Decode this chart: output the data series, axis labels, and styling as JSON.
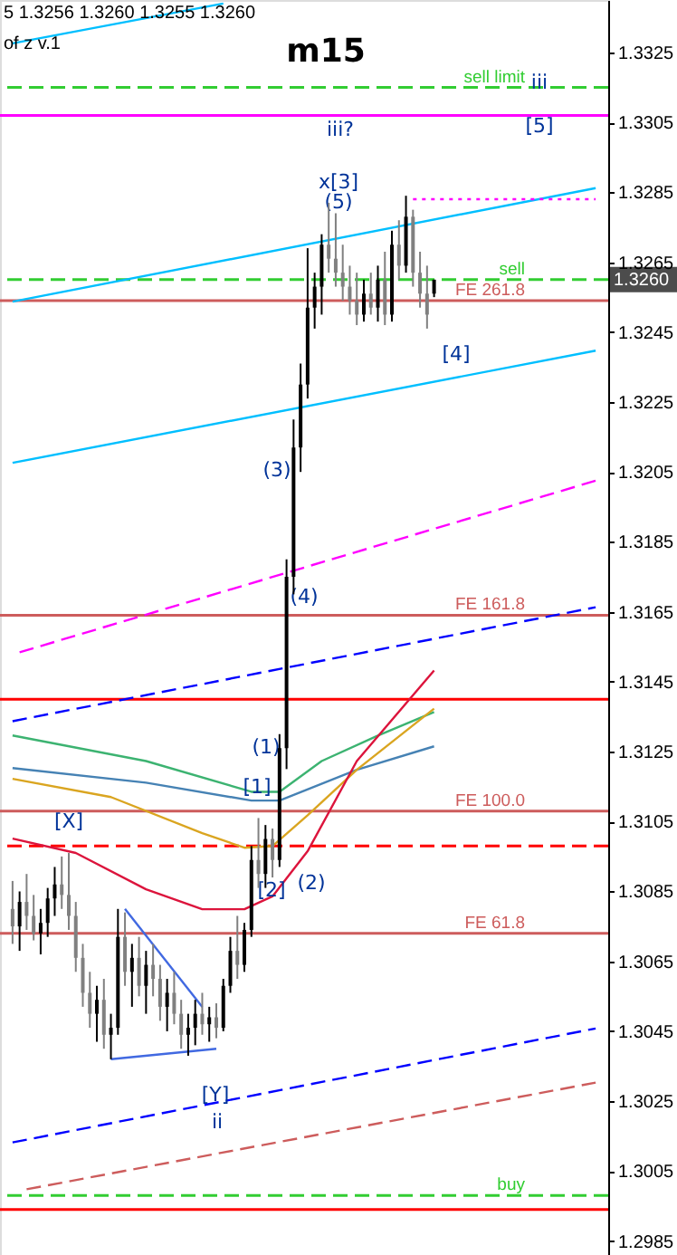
{
  "chart_data": {
    "type": "candlestick",
    "title": "m15",
    "colors": [
      "#808080",
      "#000000",
      "#808080",
      "#808080",
      "#000000",
      "#000000",
      "#000000",
      "#808080",
      "#808080",
      "#808080",
      "#808080",
      "#808080",
      "#000000",
      "#808080",
      "#000000",
      "#000000",
      "#808080",
      "#000000",
      "#808080",
      "#000000",
      "#808080",
      "#808080",
      "#000000",
      "#808080",
      "#808080",
      "#000000",
      "#000000",
      "#808080",
      "#000000",
      "#808080",
      "#000000",
      "#000000",
      "#808080",
      "#000000",
      "#000000",
      "#808080",
      "#000000",
      "#808080",
      "#000000",
      "#000000",
      "#000000",
      "#000000",
      "#000000",
      "#000000",
      "#000000",
      "#808080",
      "#808080",
      "#808080",
      "#808080",
      "#808080",
      "#000000",
      "#808080",
      "#000000",
      "#808080",
      "#000000",
      "#808080",
      "#000000",
      "#808080",
      "#808080",
      "#808080",
      "#000000",
      null,
      null,
      null,
      null,
      null,
      null,
      null,
      null,
      null,
      null,
      null,
      null,
      null,
      null,
      null,
      null,
      null,
      null,
      null,
      null,
      null,
      null,
      null
    ],
    "categories": [
      null,
      null,
      null,
      null,
      null,
      null,
      null,
      null,
      null,
      null,
      null,
      null,
      null,
      null,
      null,
      null,
      null,
      null,
      null,
      null,
      null,
      null,
      null,
      null,
      null,
      null,
      null,
      null,
      null,
      null,
      null,
      null,
      null,
      null,
      null,
      null,
      null,
      null,
      null,
      null,
      null,
      null,
      null,
      null,
      null,
      null,
      null,
      null,
      null,
      null,
      null,
      null,
      null,
      null,
      null,
      null,
      null,
      null,
      null,
      null,
      null,
      null,
      null,
      null,
      null,
      null,
      null,
      null,
      null,
      null,
      null,
      null,
      null,
      null,
      null,
      null,
      null,
      null,
      null,
      null,
      null,
      null,
      null,
      null
    ],
    "ohlc": [
      [
        1.308,
        1.3088,
        1.307,
        1.3075
      ],
      [
        1.3075,
        1.3085,
        1.3068,
        1.3082
      ],
      [
        1.3082,
        1.309,
        1.3074,
        1.3078
      ],
      [
        1.3078,
        1.3084,
        1.3071,
        1.3073
      ],
      [
        1.3073,
        1.308,
        1.3067,
        1.3076
      ],
      [
        1.3076,
        1.3086,
        1.3072,
        1.3083
      ],
      [
        1.3083,
        1.3092,
        1.3078,
        1.3087
      ],
      [
        1.3087,
        1.3095,
        1.308,
        1.3084
      ],
      [
        1.3084,
        1.3096,
        1.3074,
        1.3078
      ],
      [
        1.3078,
        1.3082,
        1.3062,
        1.3066
      ],
      [
        1.3066,
        1.307,
        1.3052,
        1.3056
      ],
      [
        1.3056,
        1.3062,
        1.3046,
        1.305
      ],
      [
        1.305,
        1.3058,
        1.3042,
        1.3054
      ],
      [
        1.3054,
        1.306,
        1.304,
        1.3044
      ],
      [
        1.3044,
        1.305,
        1.3037,
        1.3046
      ],
      [
        1.3046,
        1.308,
        1.3044,
        1.3072
      ],
      [
        1.3072,
        1.3079,
        1.3058,
        1.3062
      ],
      [
        1.3062,
        1.307,
        1.3052,
        1.3066
      ],
      [
        1.3066,
        1.3072,
        1.3055,
        1.3058
      ],
      [
        1.3058,
        1.3068,
        1.305,
        1.3064
      ],
      [
        1.3064,
        1.307,
        1.3055,
        1.306
      ],
      [
        1.306,
        1.3064,
        1.3048,
        1.3052
      ],
      [
        1.3052,
        1.306,
        1.3045,
        1.3056
      ],
      [
        1.3056,
        1.3062,
        1.3047,
        1.305
      ],
      [
        1.305,
        1.3054,
        1.304,
        1.3044
      ],
      [
        1.3044,
        1.305,
        1.3038,
        1.3046
      ],
      [
        1.3046,
        1.3054,
        1.3041,
        1.305
      ],
      [
        1.305,
        1.3056,
        1.3044,
        1.3047
      ],
      [
        1.3047,
        1.3052,
        1.3042,
        1.3049
      ],
      [
        1.3049,
        1.3053,
        1.3043,
        1.3046
      ],
      [
        1.3046,
        1.306,
        1.3045,
        1.3058
      ],
      [
        1.3058,
        1.3072,
        1.3056,
        1.3068
      ],
      [
        1.3068,
        1.3078,
        1.306,
        1.3064
      ],
      [
        1.3064,
        1.3076,
        1.3062,
        1.3074
      ],
      [
        1.3074,
        1.3098,
        1.3072,
        1.3094
      ],
      [
        1.3094,
        1.3106,
        1.3086,
        1.309
      ],
      [
        1.309,
        1.3104,
        1.3086,
        1.31
      ],
      [
        1.31,
        1.3103,
        1.3089,
        1.3094
      ],
      [
        1.3094,
        1.313,
        1.3092,
        1.3126
      ],
      [
        1.3126,
        1.318,
        1.312,
        1.3175
      ],
      [
        1.3175,
        1.322,
        1.317,
        1.3212
      ],
      [
        1.3212,
        1.3236,
        1.3205,
        1.323
      ],
      [
        1.323,
        1.3269,
        1.3226,
        1.3252
      ],
      [
        1.3252,
        1.3262,
        1.3246,
        1.3258
      ],
      [
        1.3258,
        1.3273,
        1.325,
        1.327
      ],
      [
        1.327,
        1.3282,
        1.3262,
        1.3266
      ],
      [
        1.3266,
        1.3279,
        1.3258,
        1.3262
      ],
      [
        1.3262,
        1.327,
        1.3254,
        1.3258
      ],
      [
        1.3258,
        1.3264,
        1.325,
        1.3254
      ],
      [
        1.3254,
        1.3262,
        1.3247,
        1.325
      ],
      [
        1.325,
        1.326,
        1.3248,
        1.3256
      ],
      [
        1.3256,
        1.3262,
        1.325,
        1.3252
      ],
      [
        1.3252,
        1.3264,
        1.3248,
        1.326
      ],
      [
        1.326,
        1.3268,
        1.3247,
        1.325
      ],
      [
        1.325,
        1.3274,
        1.3248,
        1.327
      ],
      [
        1.327,
        1.3277,
        1.326,
        1.3264
      ],
      [
        1.3264,
        1.3284,
        1.3262,
        1.3278
      ],
      [
        1.3278,
        1.328,
        1.3258,
        1.3262
      ],
      [
        1.3262,
        1.3268,
        1.3252,
        1.3256
      ],
      [
        1.3256,
        1.3264,
        1.3246,
        1.325
      ],
      [
        1.3256,
        1.326,
        1.3255,
        1.326
      ],
      null,
      null,
      null,
      null,
      null,
      null,
      null,
      null,
      null,
      null,
      null,
      null,
      null,
      null,
      null,
      null,
      null,
      null,
      null,
      null,
      null,
      null,
      null
    ],
    "series": [
      {
        "type": "line",
        "color": "#00bfff",
        "line_style": "solid",
        "values": [
          1.32537,
          null,
          null,
          null,
          null,
          null,
          null,
          null,
          null,
          null,
          null,
          null,
          null,
          null,
          null,
          null,
          null,
          null,
          null,
          null,
          null,
          null,
          null,
          null,
          null,
          null,
          null,
          null,
          null,
          null,
          null,
          null,
          null,
          null,
          null,
          null,
          null,
          null,
          null,
          null,
          null,
          null,
          null,
          null,
          null,
          null,
          null,
          null,
          null,
          null,
          null,
          null,
          null,
          null,
          null,
          null,
          null,
          null,
          null,
          null,
          null,
          null,
          null,
          null,
          null,
          null,
          null,
          null,
          null,
          null,
          null,
          null,
          null,
          null,
          null,
          null,
          null,
          null,
          null,
          null,
          null,
          null,
          null,
          1.32862
        ]
      },
      {
        "type": "line",
        "color": "#00bfff",
        "line_style": "solid",
        "values": [
          1.33276,
          null,
          null,
          null,
          null,
          null,
          null,
          null,
          null,
          null,
          null,
          null,
          null,
          null,
          null,
          null,
          null,
          null,
          null,
          null,
          null,
          null,
          null,
          null,
          null,
          null,
          null,
          null,
          null,
          null,
          1.3339,
          null,
          null,
          null,
          null,
          null,
          null,
          null,
          null,
          null,
          null,
          null,
          null,
          null,
          null,
          null,
          null,
          null,
          null,
          null,
          null,
          null,
          null,
          null,
          null,
          null,
          null,
          null,
          null,
          null,
          null,
          null,
          null,
          null,
          null,
          null,
          null,
          null,
          null,
          null,
          null,
          null,
          null,
          null,
          null,
          null,
          null,
          null,
          null,
          null,
          null,
          null,
          null,
          null
        ]
      },
      {
        "type": "line",
        "color": "#00bfff",
        "line_style": "solid",
        "values": [
          1.32076,
          null,
          null,
          null,
          null,
          null,
          null,
          null,
          null,
          null,
          null,
          null,
          null,
          null,
          null,
          null,
          null,
          null,
          null,
          null,
          null,
          null,
          null,
          null,
          null,
          null,
          null,
          null,
          null,
          null,
          null,
          null,
          null,
          null,
          null,
          null,
          null,
          null,
          null,
          null,
          null,
          null,
          null,
          null,
          null,
          null,
          null,
          null,
          null,
          null,
          null,
          null,
          null,
          null,
          null,
          null,
          null,
          null,
          null,
          null,
          null,
          null,
          null,
          null,
          null,
          null,
          null,
          null,
          null,
          null,
          null,
          null,
          null,
          null,
          null,
          null,
          null,
          null,
          null,
          null,
          null,
          null,
          null,
          1.32397
        ]
      },
      {
        "type": "line",
        "color": "#ff00ff",
        "line_style": "dashed",
        "values": [
          null,
          1.31534,
          null,
          null,
          null,
          null,
          null,
          null,
          null,
          null,
          null,
          null,
          null,
          null,
          null,
          null,
          null,
          null,
          null,
          null,
          null,
          null,
          null,
          null,
          null,
          null,
          null,
          null,
          null,
          null,
          null,
          null,
          null,
          null,
          null,
          null,
          null,
          null,
          null,
          null,
          null,
          null,
          null,
          null,
          null,
          null,
          null,
          null,
          null,
          null,
          null,
          null,
          null,
          null,
          null,
          null,
          null,
          null,
          null,
          null,
          null,
          null,
          null,
          null,
          null,
          null,
          null,
          null,
          null,
          null,
          null,
          null,
          null,
          null,
          null,
          null,
          null,
          null,
          null,
          null,
          null,
          null,
          null,
          1.32025
        ]
      },
      {
        "type": "line",
        "color": "#0000ff",
        "line_style": "dashed",
        "values": [
          1.31337,
          null,
          null,
          null,
          null,
          null,
          null,
          null,
          null,
          null,
          null,
          null,
          null,
          null,
          null,
          null,
          null,
          null,
          null,
          null,
          null,
          null,
          null,
          null,
          null,
          null,
          null,
          null,
          null,
          null,
          null,
          null,
          null,
          null,
          null,
          null,
          null,
          null,
          null,
          null,
          null,
          null,
          null,
          null,
          null,
          null,
          null,
          null,
          null,
          null,
          null,
          null,
          null,
          null,
          null,
          null,
          null,
          null,
          null,
          null,
          null,
          null,
          null,
          null,
          null,
          null,
          null,
          null,
          null,
          null,
          null,
          null,
          null,
          null,
          null,
          null,
          null,
          null,
          null,
          null,
          null,
          null,
          null,
          1.31663
        ]
      },
      {
        "type": "line",
        "color": "#0000ff",
        "line_style": "dashed",
        "values": [
          1.30132,
          null,
          null,
          null,
          null,
          null,
          null,
          null,
          null,
          null,
          null,
          null,
          null,
          null,
          null,
          null,
          null,
          null,
          null,
          null,
          null,
          null,
          null,
          null,
          null,
          null,
          null,
          null,
          null,
          null,
          null,
          null,
          null,
          null,
          null,
          null,
          null,
          null,
          null,
          null,
          null,
          null,
          null,
          null,
          null,
          null,
          null,
          null,
          null,
          null,
          null,
          null,
          null,
          null,
          null,
          null,
          null,
          null,
          null,
          null,
          null,
          null,
          null,
          null,
          null,
          null,
          null,
          null,
          null,
          null,
          null,
          null,
          null,
          null,
          null,
          null,
          null,
          null,
          null,
          null,
          null,
          null,
          null,
          1.30458
        ]
      },
      {
        "type": "line",
        "color": "#cd5c5c",
        "line_style": "dashed",
        "values": [
          null,
          null,
          1.29998,
          null,
          null,
          null,
          null,
          null,
          null,
          null,
          null,
          null,
          null,
          null,
          null,
          null,
          null,
          null,
          null,
          null,
          null,
          null,
          null,
          null,
          null,
          null,
          null,
          null,
          null,
          null,
          null,
          null,
          null,
          null,
          null,
          null,
          null,
          null,
          null,
          null,
          null,
          null,
          null,
          null,
          null,
          null,
          null,
          null,
          null,
          null,
          null,
          null,
          null,
          null,
          null,
          null,
          null,
          null,
          null,
          null,
          null,
          null,
          null,
          null,
          null,
          null,
          null,
          null,
          null,
          null,
          null,
          null,
          null,
          null,
          null,
          null,
          null,
          null,
          null,
          null,
          null,
          null,
          null,
          1.30303
        ]
      },
      {
        "type": "line",
        "color": "#ff00ff",
        "line_style": "dotted",
        "values": [
          null,
          null,
          null,
          null,
          null,
          null,
          null,
          null,
          null,
          null,
          null,
          null,
          null,
          null,
          null,
          null,
          null,
          null,
          null,
          null,
          null,
          null,
          null,
          null,
          null,
          null,
          null,
          null,
          null,
          null,
          null,
          null,
          null,
          null,
          null,
          null,
          null,
          null,
          null,
          null,
          null,
          null,
          null,
          null,
          null,
          null,
          null,
          null,
          null,
          null,
          null,
          null,
          null,
          null,
          null,
          null,
          null,
          1.3283,
          null,
          null,
          null,
          null,
          null,
          null,
          null,
          null,
          null,
          null,
          null,
          null,
          null,
          null,
          null,
          null,
          null,
          null,
          null,
          null,
          null,
          null,
          null,
          null,
          null,
          1.3283
        ]
      },
      {
        "type": "line",
        "color": "#4169e1",
        "line_style": "solid",
        "values": [
          null,
          null,
          null,
          null,
          null,
          null,
          null,
          null,
          null,
          null,
          null,
          null,
          null,
          null,
          null,
          null,
          1.308,
          null,
          null,
          null,
          null,
          null,
          null,
          null,
          null,
          null,
          null,
          1.3052,
          null,
          null,
          null,
          null,
          null,
          null,
          null,
          null,
          null,
          null,
          null,
          null,
          null,
          null,
          null,
          null,
          null,
          null,
          null,
          null,
          null,
          null,
          null,
          null,
          null,
          null,
          null,
          null,
          null,
          null,
          null,
          null,
          null,
          null,
          null,
          null,
          null,
          null,
          null,
          null,
          null,
          null,
          null,
          null,
          null,
          null,
          null,
          null,
          null,
          null,
          null,
          null,
          null,
          null,
          null,
          null
        ]
      },
      {
        "type": "line",
        "color": "#4169e1",
        "line_style": "solid",
        "values": [
          null,
          null,
          null,
          null,
          null,
          null,
          null,
          null,
          null,
          null,
          null,
          null,
          null,
          null,
          1.3037,
          null,
          null,
          null,
          null,
          null,
          null,
          null,
          null,
          null,
          null,
          null,
          null,
          null,
          null,
          1.304,
          null,
          null,
          null,
          null,
          null,
          null,
          null,
          null,
          null,
          null,
          null,
          null,
          null,
          null,
          null,
          null,
          null,
          null,
          null,
          null,
          null,
          null,
          null,
          null,
          null,
          null,
          null,
          null,
          null,
          null,
          null,
          null,
          null,
          null,
          null,
          null,
          null,
          null,
          null,
          null,
          null,
          null,
          null,
          null,
          null,
          null,
          null,
          null,
          null,
          null,
          null,
          null,
          null,
          null
        ]
      },
      {
        "type": "line",
        "color": "#3cb371",
        "line_style": "solid",
        "values": [
          1.31296,
          null,
          null,
          null,
          null,
          null,
          null,
          null,
          null,
          null,
          null,
          null,
          null,
          null,
          null,
          null,
          null,
          null,
          null,
          1.31223,
          null,
          null,
          null,
          null,
          null,
          null,
          null,
          null,
          null,
          null,
          null,
          null,
          null,
          null,
          1.31135,
          null,
          null,
          null,
          1.31135,
          null,
          null,
          null,
          null,
          null,
          1.31223,
          null,
          null,
          null,
          null,
          null,
          null,
          null,
          1.31296,
          null,
          null,
          null,
          null,
          null,
          null,
          null,
          1.31363,
          null,
          null,
          null,
          null,
          null,
          null,
          null,
          null,
          null,
          null,
          null,
          null,
          null,
          null,
          null,
          null,
          null,
          null,
          null,
          null,
          null,
          null,
          null
        ]
      },
      {
        "type": "line",
        "color": "#4682b4",
        "line_style": "solid",
        "values": [
          1.31203,
          null,
          null,
          null,
          null,
          null,
          null,
          null,
          null,
          null,
          null,
          null,
          null,
          null,
          null,
          null,
          null,
          null,
          null,
          1.31161,
          null,
          null,
          null,
          null,
          null,
          null,
          null,
          null,
          null,
          null,
          null,
          null,
          null,
          null,
          1.3111,
          null,
          null,
          null,
          1.3111,
          null,
          null,
          null,
          null,
          null,
          null,
          null,
          null,
          null,
          null,
          1.31198,
          null,
          null,
          null,
          null,
          null,
          null,
          null,
          null,
          null,
          null,
          1.31265,
          null,
          null,
          null,
          null,
          null,
          null,
          null,
          null,
          null,
          null,
          null,
          null,
          null,
          null,
          null,
          null,
          null,
          null,
          null,
          null,
          null,
          null,
          null
        ]
      },
      {
        "type": "line",
        "color": "#daa520",
        "line_style": "solid",
        "values": [
          1.31172,
          null,
          null,
          null,
          null,
          null,
          null,
          null,
          null,
          null,
          null,
          null,
          null,
          null,
          1.3112,
          null,
          null,
          null,
          null,
          null,
          null,
          null,
          null,
          null,
          null,
          null,
          null,
          1.31017,
          null,
          null,
          null,
          null,
          null,
          1.30975,
          null,
          null,
          null,
          1.3098,
          null,
          null,
          null,
          null,
          1.31068,
          null,
          null,
          null,
          null,
          null,
          null,
          1.31198,
          null,
          null,
          null,
          null,
          null,
          null,
          null,
          null,
          null,
          null,
          1.31373,
          null,
          null,
          null,
          null,
          null,
          null,
          null,
          null,
          null,
          null,
          null,
          null,
          null,
          null,
          null,
          null,
          null,
          null,
          null,
          null,
          null,
          null,
          null
        ]
      },
      {
        "type": "line",
        "color": "#dc143c",
        "line_style": "solid",
        "values": [
          1.31001,
          null,
          null,
          null,
          null,
          null,
          null,
          null,
          null,
          1.3096,
          null,
          null,
          null,
          null,
          null,
          null,
          null,
          null,
          null,
          1.30856,
          null,
          null,
          null,
          null,
          null,
          null,
          null,
          1.30799,
          null,
          null,
          null,
          null,
          null,
          1.30799,
          null,
          null,
          null,
          1.30836,
          null,
          null,
          null,
          null,
          1.30965,
          null,
          null,
          null,
          null,
          null,
          null,
          1.31223,
          null,
          null,
          null,
          null,
          null,
          null,
          null,
          null,
          null,
          null,
          1.31482,
          null,
          null,
          null,
          null,
          null,
          null,
          null,
          null,
          null,
          null,
          null,
          null,
          null,
          null,
          null,
          null,
          null,
          null,
          null,
          null,
          null,
          null,
          null
        ]
      }
    ],
    "ref_lines": [
      {
        "axis": "y",
        "value": 1.3315,
        "label": "sell limit",
        "color": "#32cd32",
        "line_style": "dashed"
      },
      {
        "axis": "y",
        "value": 1.3307,
        "color": "#ff00ff",
        "line_style": "solid"
      },
      {
        "axis": "y",
        "value": 1.326,
        "label": "sell",
        "color": "#32cd32",
        "line_style": "dashed"
      },
      {
        "axis": "y",
        "value": 1.3254,
        "label": "FE 261.8",
        "color": "#cd5c5c",
        "line_style": "solid"
      },
      {
        "axis": "y",
        "value": 1.3164,
        "label": "FE 161.8",
        "color": "#cd5c5c",
        "line_style": "solid"
      },
      {
        "axis": "y",
        "value": 1.314,
        "color": "#ff0000",
        "line_style": "solid"
      },
      {
        "axis": "y",
        "value": 1.3108,
        "label": "FE 100.0",
        "color": "#cd5c5c",
        "line_style": "solid"
      },
      {
        "axis": "y",
        "value": 1.3098,
        "color": "#ff0000",
        "line_style": "dashed"
      },
      {
        "axis": "y",
        "value": 1.3073,
        "label": "FE 61.8",
        "color": "#cd5c5c",
        "line_style": "solid"
      },
      {
        "axis": "y",
        "value": 1.2998,
        "label": "buy",
        "color": "#32cd32",
        "line_style": "dashed"
      },
      {
        "axis": "y",
        "value": 1.2994,
        "color": "#ff0000",
        "line_style": "solid"
      }
    ],
    "annotations": [
      "5  1.3256 1.3260 1.3255 1.3260",
      "of z v.1",
      {
        "text": "1.3260",
        "y": 1.326
      },
      "iii",
      "[5]",
      "iii?",
      "x[3]",
      "(5)",
      "[4]",
      "(3)",
      "(4)",
      "(1)",
      "[1]",
      "[X]",
      "(2)",
      "[2]",
      "[Y]",
      "ii"
    ],
    "ylim": [
      1.2981,
      1.334
    ],
    "yticks": [
      1.3325,
      1.3305,
      1.3285,
      1.3265,
      1.3245,
      1.3225,
      1.3205,
      1.3185,
      1.3165,
      1.3145,
      1.3125,
      1.3105,
      1.3085,
      1.3065,
      1.3045,
      1.3025,
      1.3005,
      1.2985
    ],
    "tick_labels": "y",
    "grid": false
  }
}
